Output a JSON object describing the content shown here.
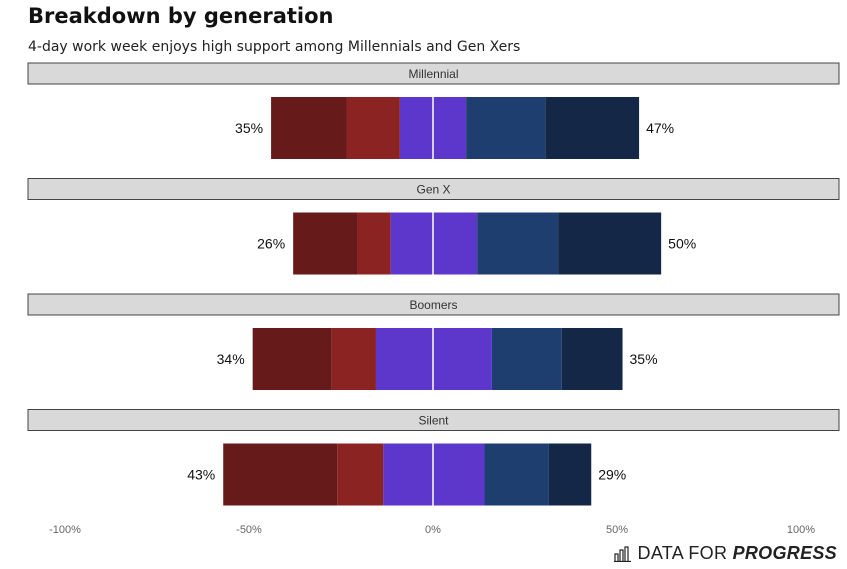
{
  "title": "Breakdown by generation",
  "subtitle": "4-day work week enjoys high support among Millennials and Gen Xers",
  "logo": {
    "part1": "DATA FOR ",
    "part2": "PROGRESS"
  },
  "chart_data": {
    "type": "diverging-stacked-bar",
    "xlim": [
      -100,
      100
    ],
    "x_ticks": [
      -100,
      -50,
      0,
      50,
      100
    ],
    "x_tick_labels": [
      "-100%",
      "-50%",
      "0%",
      "50%",
      "100%"
    ],
    "segment_colors": [
      "#661a1a",
      "#8c2323",
      "#5d36cc",
      "#5d36cc",
      "#1f3e70",
      "#142747"
    ],
    "panels": [
      {
        "label": "Millennial",
        "oppose_label": "35%",
        "support_label": "47%",
        "segments": [
          [
            -44,
            -23.5
          ],
          [
            -23.5,
            -9
          ],
          [
            -9,
            0
          ],
          [
            0,
            9
          ],
          [
            9,
            30.5
          ],
          [
            30.5,
            56
          ]
        ]
      },
      {
        "label": "Gen X",
        "oppose_label": "26%",
        "support_label": "50%",
        "segments": [
          [
            -38,
            -20.5
          ],
          [
            -20.5,
            -11.5
          ],
          [
            -11.5,
            0
          ],
          [
            0,
            12
          ],
          [
            12,
            34
          ],
          [
            34,
            62
          ]
        ]
      },
      {
        "label": "Boomers",
        "oppose_label": "34%",
        "support_label": "35%",
        "segments": [
          [
            -49,
            -27.5
          ],
          [
            -27.5,
            -15.5
          ],
          [
            -15.5,
            0
          ],
          [
            0,
            16
          ],
          [
            16,
            35
          ],
          [
            35,
            51.5
          ]
        ]
      },
      {
        "label": "Silent",
        "oppose_label": "43%",
        "support_label": "29%",
        "segments": [
          [
            -57,
            -26
          ],
          [
            -26,
            -13.5
          ],
          [
            -13.5,
            0
          ],
          [
            0,
            14
          ],
          [
            14,
            31.5
          ],
          [
            31.5,
            43
          ]
        ]
      }
    ]
  }
}
